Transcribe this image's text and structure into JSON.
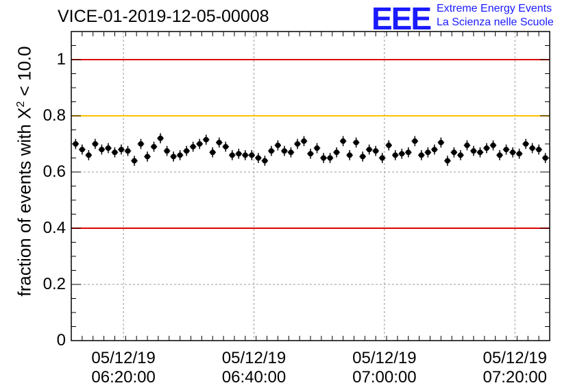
{
  "chart_data": {
    "type": "scatter",
    "title": "VICE-01-2019-12-05-00008",
    "ylabel_prefix": "fraction of events with ",
    "ylabel_symbol": "X",
    "ylabel_exp": "2",
    "ylabel_suffix": " < 10.0",
    "ylim": [
      0,
      1.1
    ],
    "yticks": [
      "0",
      "0.2",
      "0.4",
      "0.6",
      "0.8",
      "1"
    ],
    "ytick_values": [
      0,
      0.2,
      0.4,
      0.6,
      0.8,
      1.0
    ],
    "xlim": [
      0,
      110
    ],
    "xticks": [
      {
        "date": "05/12/19",
        "time": "06:20:00",
        "pos": 12
      },
      {
        "date": "05/12/19",
        "time": "06:40:00",
        "pos": 42
      },
      {
        "date": "05/12/19",
        "time": "07:00:00",
        "pos": 72
      },
      {
        "date": "05/12/19",
        "time": "07:20:00",
        "pos": 102
      }
    ],
    "reference_lines": [
      {
        "y": 1.0,
        "color": "#e00000"
      },
      {
        "y": 0.8,
        "color": "#ffc000"
      },
      {
        "y": 0.4,
        "color": "#e00000"
      }
    ],
    "grid": true,
    "y_error": 0.018,
    "series": [
      {
        "name": "fraction",
        "x_step": 1.5,
        "x_start": 1.0,
        "values": [
          0.7,
          0.68,
          0.66,
          0.7,
          0.68,
          0.685,
          0.67,
          0.68,
          0.675,
          0.64,
          0.7,
          0.655,
          0.69,
          0.72,
          0.675,
          0.655,
          0.66,
          0.675,
          0.69,
          0.7,
          0.715,
          0.67,
          0.705,
          0.69,
          0.66,
          0.665,
          0.66,
          0.66,
          0.65,
          0.64,
          0.675,
          0.695,
          0.675,
          0.67,
          0.7,
          0.71,
          0.665,
          0.685,
          0.65,
          0.65,
          0.67,
          0.71,
          0.66,
          0.705,
          0.655,
          0.68,
          0.675,
          0.65,
          0.695,
          0.66,
          0.665,
          0.67,
          0.71,
          0.66,
          0.67,
          0.68,
          0.705,
          0.64,
          0.67,
          0.66,
          0.695,
          0.675,
          0.67,
          0.685,
          0.695,
          0.66,
          0.68,
          0.67,
          0.665,
          0.7,
          0.685,
          0.68,
          0.65
        ]
      }
    ]
  },
  "logo": {
    "mark": "EEE",
    "line1": "Extreme Energy Events",
    "line2": "La Scienza nelle Scuole"
  }
}
